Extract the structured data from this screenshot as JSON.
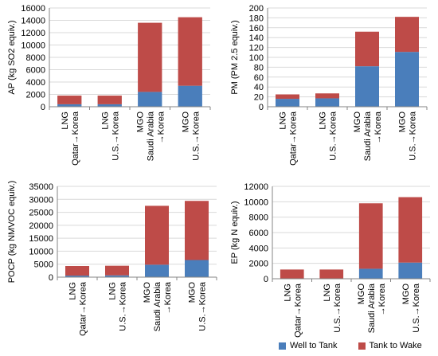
{
  "colors": {
    "well_to_tank": "#4a7ebb",
    "tank_to_wake": "#be4b48",
    "grid": "#d9d9d9",
    "axis": "#868686"
  },
  "legend": [
    {
      "label": "Well to Tank",
      "color": "#4a7ebb"
    },
    {
      "label": "Tank to Wake",
      "color": "#be4b48"
    }
  ],
  "chart_data": [
    {
      "type": "bar",
      "stacked": true,
      "title": "",
      "ylabel": "AP (kg SO2 equiv.)",
      "ylim": [
        0,
        16000
      ],
      "yticks": [
        0,
        2000,
        4000,
        6000,
        8000,
        10000,
        12000,
        14000,
        16000
      ],
      "grid": true,
      "categories": [
        [
          "LNG",
          "Qatar→Korea"
        ],
        [
          "LNG",
          "U.S.→Korea"
        ],
        [
          "MGO",
          "Saudi Arabia",
          "→Korea"
        ],
        [
          "MGO",
          "U.S.→Korea"
        ]
      ],
      "series": [
        {
          "name": "Well to Tank",
          "values": [
            400,
            400,
            2400,
            3400
          ]
        },
        {
          "name": "Tank to Wake",
          "values": [
            1400,
            1400,
            11200,
            11100
          ]
        }
      ]
    },
    {
      "type": "bar",
      "stacked": true,
      "title": "",
      "ylabel": "PM (PM 2.5 equiv.)",
      "ylim": [
        0,
        200
      ],
      "yticks": [
        0,
        20,
        40,
        60,
        80,
        100,
        120,
        140,
        160,
        180,
        200
      ],
      "grid": true,
      "categories": [
        [
          "LNG",
          "Qatar→Korea"
        ],
        [
          "LNG",
          "U.S.→Korea"
        ],
        [
          "MGO",
          "Saudi Arabia",
          "→Korea"
        ],
        [
          "MGO",
          "U.S.→Korea"
        ]
      ],
      "series": [
        {
          "name": "Well to Tank",
          "values": [
            16,
            17,
            82,
            111
          ]
        },
        {
          "name": "Tank to Wake",
          "values": [
            9,
            10,
            70,
            71
          ]
        }
      ]
    },
    {
      "type": "bar",
      "stacked": true,
      "title": "",
      "ylabel": "POCP (kg NMVOC equiv.)",
      "ylim": [
        0,
        35000
      ],
      "yticks": [
        0,
        5000,
        10000,
        15000,
        20000,
        25000,
        30000,
        35000
      ],
      "grid": true,
      "categories": [
        [
          "LNG",
          "Qatar→Korea"
        ],
        [
          "LNG",
          "U.S.→Korea"
        ],
        [
          "MGO",
          "Saudi Arabia",
          "→Korea"
        ],
        [
          "MGO",
          "U.S.→Korea"
        ]
      ],
      "series": [
        {
          "name": "Well to Tank",
          "values": [
            600,
            700,
            4800,
            6600
          ]
        },
        {
          "name": "Tank to Wake",
          "values": [
            3700,
            3700,
            22700,
            22800
          ]
        }
      ]
    },
    {
      "type": "bar",
      "stacked": true,
      "title": "",
      "ylabel": "EP (kg N equiv.)",
      "ylim": [
        0,
        12000
      ],
      "yticks": [
        0,
        2000,
        4000,
        6000,
        8000,
        10000,
        12000
      ],
      "grid": true,
      "categories": [
        [
          "LNG",
          "Qatar→Korea"
        ],
        [
          "LNG",
          "U.S.→Korea"
        ],
        [
          "MGO",
          "Saudi Arabia",
          "→Korea"
        ],
        [
          "MGO",
          "U.S.→Korea"
        ]
      ],
      "series": [
        {
          "name": "Well to Tank",
          "values": [
            50,
            50,
            1300,
            2100
          ]
        },
        {
          "name": "Tank to Wake",
          "values": [
            1150,
            1150,
            8500,
            8500
          ]
        }
      ]
    }
  ]
}
